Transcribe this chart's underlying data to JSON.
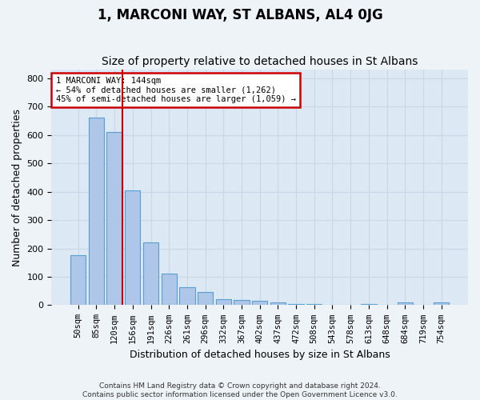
{
  "title": "1, MARCONI WAY, ST ALBANS, AL4 0JG",
  "subtitle": "Size of property relative to detached houses in St Albans",
  "xlabel": "Distribution of detached houses by size in St Albans",
  "ylabel": "Number of detached properties",
  "footer_line1": "Contains HM Land Registry data © Crown copyright and database right 2024.",
  "footer_line2": "Contains public sector information licensed under the Open Government Licence v3.0.",
  "bins": [
    "50sqm",
    "85sqm",
    "120sqm",
    "156sqm",
    "191sqm",
    "226sqm",
    "261sqm",
    "296sqm",
    "332sqm",
    "367sqm",
    "402sqm",
    "437sqm",
    "472sqm",
    "508sqm",
    "543sqm",
    "578sqm",
    "613sqm",
    "648sqm",
    "684sqm",
    "719sqm",
    "754sqm"
  ],
  "bar_values": [
    175,
    660,
    610,
    405,
    220,
    110,
    63,
    47,
    22,
    17,
    15,
    10,
    5,
    5,
    0,
    0,
    5,
    0,
    10,
    0,
    10
  ],
  "bar_color": "#aec6e8",
  "bar_edge_color": "#5a9fd4",
  "vline_x": 2.42,
  "vline_color": "#cc0000",
  "annotation_text": "1 MARCONI WAY: 144sqm\n← 54% of detached houses are smaller (1,262)\n45% of semi-detached houses are larger (1,059) →",
  "annotation_box_edgecolor": "#cc0000",
  "ylim": [
    0,
    830
  ],
  "yticks": [
    0,
    100,
    200,
    300,
    400,
    500,
    600,
    700,
    800
  ],
  "grid_color": "#c8d8e8",
  "bg_color": "#dce8f4",
  "fig_bg_color": "#eef3f8",
  "title_fontsize": 12,
  "subtitle_fontsize": 10,
  "axis_label_fontsize": 9,
  "tick_fontsize": 7.5,
  "footer_fontsize": 6.5,
  "annot_fontsize": 7.5
}
